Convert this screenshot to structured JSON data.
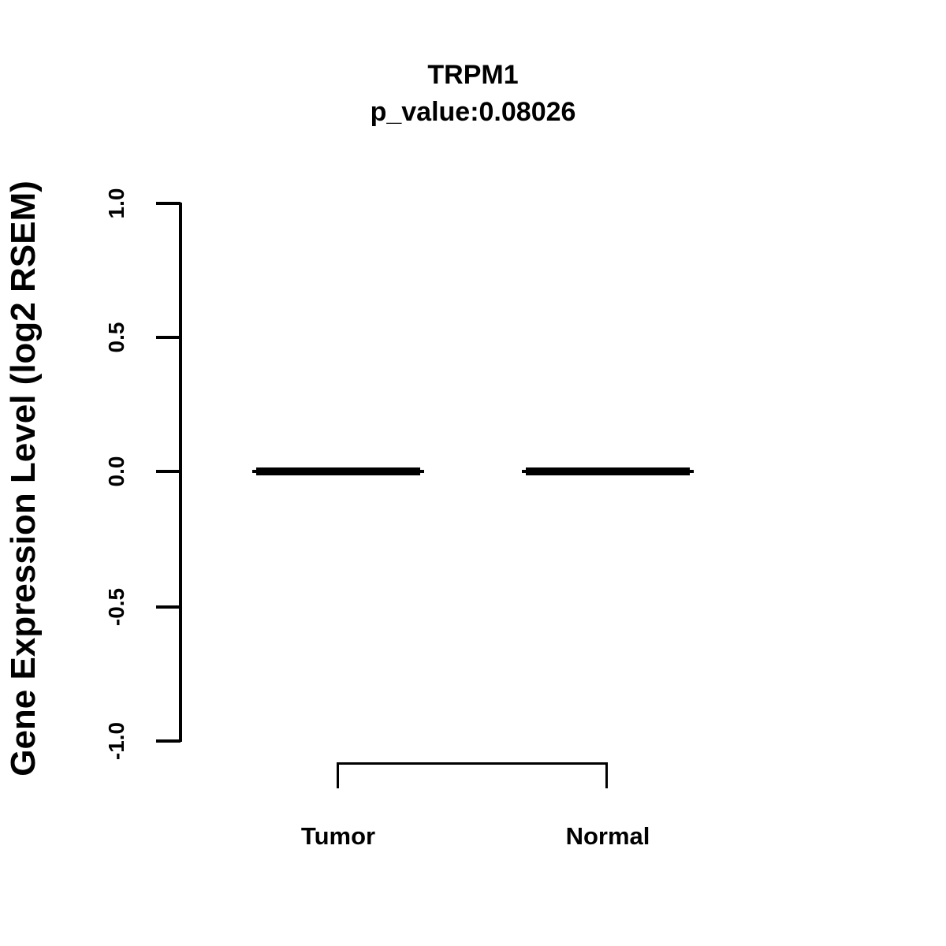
{
  "figure": {
    "background_color": "#ffffff",
    "foreground_color": "#000000"
  },
  "chart_data": {
    "type": "boxplot",
    "title": "TRPM1",
    "subtitle": "p_value:0.08026",
    "ylabel": "Gene Expression Level (log2 RSEM)",
    "xlabel": "",
    "categories": [
      "Tumor",
      "Normal"
    ],
    "series": [
      {
        "name": "Tumor",
        "median": 0.0,
        "q1": 0.0,
        "q3": 0.0,
        "whisker_low": 0.0,
        "whisker_high": 0.0,
        "note": "box collapsed to a single thick line at 0.0"
      },
      {
        "name": "Normal",
        "median": 0.0,
        "q1": 0.0,
        "q3": 0.0,
        "whisker_low": 0.0,
        "whisker_high": 0.0,
        "note": "box collapsed to a single thick line at 0.0"
      }
    ],
    "ylim": [
      -1.0,
      1.0
    ],
    "yticks": [
      1.0,
      0.5,
      0.0,
      -0.5,
      -1.0
    ],
    "ytick_labels": [
      "1.0",
      "0.5",
      "0.0",
      "-0.5",
      "-1.0"
    ],
    "grid": false,
    "legend_position": "none",
    "annotations": [
      {
        "type": "comparison-bracket",
        "between": [
          "Tumor",
          "Normal"
        ]
      }
    ]
  }
}
